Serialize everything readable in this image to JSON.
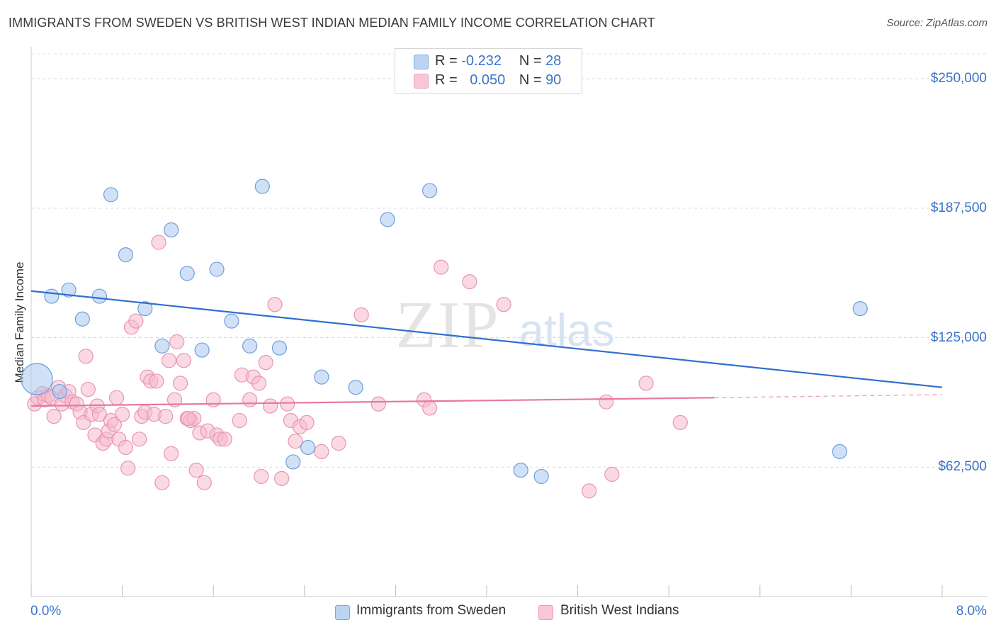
{
  "title": "IMMIGRANTS FROM SWEDEN VS BRITISH WEST INDIAN MEDIAN FAMILY INCOME CORRELATION CHART",
  "source": "Source: ZipAtlas.com",
  "watermark": {
    "zip": "ZIP",
    "atlas": "atlas"
  },
  "legend": {
    "r_label": "R =",
    "n_label": "N =",
    "rows": [
      {
        "r": "-0.232",
        "n": "28"
      },
      {
        "r": "0.050",
        "n": "90"
      }
    ]
  },
  "colors": {
    "sweden_fill": "#a9c7ef",
    "sweden_stroke": "#6f9fdb",
    "sweden_line": "#2f6fd0",
    "bwi_fill": "#f6b9cc",
    "bwi_stroke": "#e995b0",
    "bwi_line": "#e8789f",
    "accent_text": "#3b74c9"
  },
  "chart_data": {
    "type": "scatter",
    "title": "IMMIGRANTS FROM SWEDEN VS BRITISH WEST INDIAN MEDIAN FAMILY INCOME CORRELATION CHART",
    "xlabel": "",
    "ylabel": "Median Family Income",
    "xlim": [
      0,
      8
    ],
    "ylim": [
      0,
      262000
    ],
    "x_tick_labels": [
      "0.0%",
      "8.0%"
    ],
    "y_ticks": [
      62500,
      125000,
      187500,
      250000
    ],
    "y_tick_labels": [
      "$62,500",
      "$125,000",
      "$187,500",
      "$250,000"
    ],
    "series": [
      {
        "name": "Immigrants from Sweden",
        "r": -0.232,
        "n": 28,
        "trend": {
          "x0": 0.0,
          "y0": 147500,
          "x1": 8.0,
          "y1": 101000
        },
        "points": [
          [
            0.05,
            105000,
            22
          ],
          [
            0.18,
            145000,
            10
          ],
          [
            0.33,
            148000,
            10
          ],
          [
            0.45,
            134000,
            10
          ],
          [
            0.6,
            145000,
            10
          ],
          [
            0.7,
            194000,
            10
          ],
          [
            0.83,
            165000,
            10
          ],
          [
            1.0,
            139000,
            10
          ],
          [
            1.15,
            121000,
            10
          ],
          [
            1.23,
            177000,
            10
          ],
          [
            1.37,
            156000,
            10
          ],
          [
            1.5,
            119000,
            10
          ],
          [
            1.63,
            158000,
            10
          ],
          [
            1.76,
            133000,
            10
          ],
          [
            1.92,
            121000,
            10
          ],
          [
            2.03,
            198000,
            10
          ],
          [
            2.18,
            120000,
            10
          ],
          [
            2.3,
            65000,
            10
          ],
          [
            2.43,
            72000,
            10
          ],
          [
            2.55,
            106000,
            10
          ],
          [
            2.85,
            101000,
            10
          ],
          [
            3.13,
            182000,
            10
          ],
          [
            3.5,
            196000,
            10
          ],
          [
            4.3,
            61000,
            10
          ],
          [
            4.48,
            58000,
            10
          ],
          [
            7.1,
            70000,
            10
          ],
          [
            7.28,
            139000,
            10
          ],
          [
            0.25,
            99000,
            10
          ]
        ]
      },
      {
        "name": "British West Indians",
        "r": 0.05,
        "n": 90,
        "trend": {
          "x0": 0.0,
          "y0": 92000,
          "x1": 6.0,
          "y1": 96000
        },
        "trend_dashed": {
          "x0": 6.0,
          "y0": 96000,
          "x1": 8.0,
          "y1": 97500
        },
        "points": [
          [
            0.03,
            93000,
            10
          ],
          [
            0.06,
            96000,
            10
          ],
          [
            0.1,
            98000,
            10
          ],
          [
            0.12,
            95000,
            10
          ],
          [
            0.15,
            97000,
            10
          ],
          [
            0.18,
            96000,
            10
          ],
          [
            0.2,
            87000,
            10
          ],
          [
            0.24,
            101000,
            10
          ],
          [
            0.27,
            93000,
            10
          ],
          [
            0.3,
            97000,
            10
          ],
          [
            0.33,
            99000,
            10
          ],
          [
            0.36,
            94000,
            10
          ],
          [
            0.4,
            93000,
            10
          ],
          [
            0.43,
            89000,
            10
          ],
          [
            0.46,
            84000,
            10
          ],
          [
            0.48,
            116000,
            10
          ],
          [
            0.5,
            100000,
            10
          ],
          [
            0.53,
            88000,
            10
          ],
          [
            0.56,
            78000,
            10
          ],
          [
            0.58,
            92000,
            10
          ],
          [
            0.6,
            88000,
            10
          ],
          [
            0.63,
            74000,
            10
          ],
          [
            0.66,
            76000,
            10
          ],
          [
            0.68,
            80000,
            10
          ],
          [
            0.7,
            85000,
            10
          ],
          [
            0.73,
            83000,
            10
          ],
          [
            0.75,
            96000,
            10
          ],
          [
            0.77,
            76000,
            10
          ],
          [
            0.8,
            88000,
            10
          ],
          [
            0.83,
            72000,
            10
          ],
          [
            0.85,
            62000,
            10
          ],
          [
            0.88,
            130000,
            10
          ],
          [
            0.92,
            133000,
            10
          ],
          [
            0.95,
            76000,
            10
          ],
          [
            0.97,
            87000,
            10
          ],
          [
            1.0,
            89000,
            10
          ],
          [
            1.02,
            106000,
            10
          ],
          [
            1.05,
            104000,
            10
          ],
          [
            1.08,
            88000,
            10
          ],
          [
            1.1,
            104000,
            10
          ],
          [
            1.12,
            171000,
            10
          ],
          [
            1.15,
            55000,
            10
          ],
          [
            1.18,
            87000,
            10
          ],
          [
            1.21,
            114000,
            10
          ],
          [
            1.23,
            69000,
            10
          ],
          [
            1.26,
            95000,
            10
          ],
          [
            1.28,
            123000,
            10
          ],
          [
            1.31,
            103000,
            10
          ],
          [
            1.34,
            114000,
            10
          ],
          [
            1.37,
            86000,
            10
          ],
          [
            1.4,
            85000,
            10
          ],
          [
            1.43,
            86000,
            10
          ],
          [
            1.45,
            61000,
            10
          ],
          [
            1.48,
            79000,
            10
          ],
          [
            1.52,
            55000,
            10
          ],
          [
            1.55,
            80000,
            10
          ],
          [
            1.6,
            95000,
            10
          ],
          [
            1.63,
            78000,
            10
          ],
          [
            1.66,
            76000,
            10
          ],
          [
            1.7,
            76000,
            10
          ],
          [
            1.83,
            85000,
            10
          ],
          [
            1.85,
            107000,
            10
          ],
          [
            1.92,
            95000,
            10
          ],
          [
            1.95,
            106000,
            10
          ],
          [
            2.0,
            103000,
            10
          ],
          [
            2.02,
            58000,
            10
          ],
          [
            2.06,
            113000,
            10
          ],
          [
            2.1,
            92000,
            10
          ],
          [
            2.14,
            141000,
            10
          ],
          [
            2.2,
            57000,
            10
          ],
          [
            2.25,
            93000,
            10
          ],
          [
            2.28,
            85000,
            10
          ],
          [
            2.32,
            75000,
            10
          ],
          [
            2.36,
            82000,
            10
          ],
          [
            2.42,
            84000,
            10
          ],
          [
            2.55,
            70000,
            10
          ],
          [
            2.7,
            74000,
            10
          ],
          [
            2.9,
            136000,
            10
          ],
          [
            3.05,
            93000,
            10
          ],
          [
            3.45,
            95000,
            10
          ],
          [
            3.5,
            91000,
            10
          ],
          [
            3.6,
            159000,
            10
          ],
          [
            3.85,
            152000,
            10
          ],
          [
            4.15,
            141000,
            10
          ],
          [
            4.9,
            51000,
            10
          ],
          [
            5.05,
            94000,
            10
          ],
          [
            5.1,
            59000,
            10
          ],
          [
            5.4,
            103000,
            10
          ],
          [
            5.7,
            84000,
            10
          ],
          [
            1.38,
            86000,
            10
          ]
        ]
      }
    ]
  },
  "bottom_legend": [
    {
      "label": "Immigrants from Sweden"
    },
    {
      "label": "British West Indians"
    }
  ]
}
